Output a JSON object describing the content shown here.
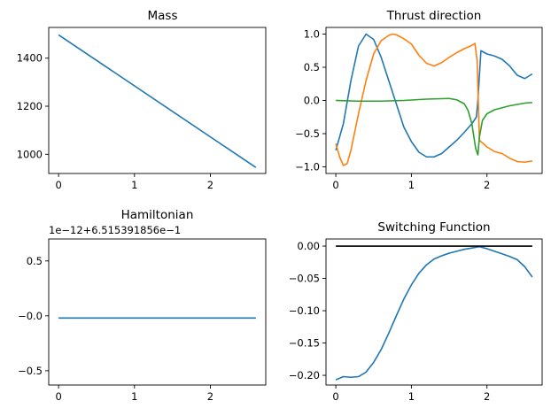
{
  "figure": {
    "background": "#ffffff"
  },
  "chart_data": [
    {
      "id": "mass",
      "type": "line",
      "title": "Mass",
      "xlabel": "",
      "ylabel": "",
      "xlim": [
        -0.13,
        2.73
      ],
      "ylim": [
        920,
        1528
      ],
      "xticks": [
        0,
        1,
        2
      ],
      "xtick_labels": [
        "0",
        "1",
        "2"
      ],
      "yticks": [
        1000,
        1200,
        1400
      ],
      "ytick_labels": [
        "1000",
        "1200",
        "1400"
      ],
      "grid": false,
      "series": [
        {
          "color": "#1f77b4",
          "x": [
            0,
            2.6
          ],
          "y": [
            1497,
            945
          ]
        }
      ]
    },
    {
      "id": "thrust",
      "type": "line",
      "title": "Thrust direction",
      "xlabel": "",
      "ylabel": "",
      "xlim": [
        -0.13,
        2.73
      ],
      "ylim": [
        -1.1,
        1.1
      ],
      "xticks": [
        0,
        1,
        2
      ],
      "xtick_labels": [
        "0",
        "1",
        "2"
      ],
      "yticks": [
        -1.0,
        -0.5,
        0.0,
        0.5,
        1.0
      ],
      "ytick_labels": [
        "−1.0",
        "−0.5",
        "0.0",
        "0.5",
        "1.0"
      ],
      "grid": false,
      "series": [
        {
          "color": "#1f77b4",
          "x": [
            0,
            0.1,
            0.2,
            0.3,
            0.4,
            0.5,
            0.6,
            0.7,
            0.8,
            0.9,
            1.0,
            1.1,
            1.2,
            1.3,
            1.4,
            1.5,
            1.6,
            1.7,
            1.8,
            1.86,
            1.88,
            1.92,
            2.0,
            2.1,
            2.2,
            2.3,
            2.4,
            2.5,
            2.6
          ],
          "y": [
            -0.75,
            -0.35,
            0.3,
            0.82,
            1.0,
            0.92,
            0.65,
            0.3,
            -0.05,
            -0.4,
            -0.62,
            -0.78,
            -0.85,
            -0.85,
            -0.8,
            -0.7,
            -0.6,
            -0.48,
            -0.35,
            -0.25,
            0.0,
            0.75,
            0.7,
            0.67,
            0.62,
            0.52,
            0.38,
            0.33,
            0.4
          ]
        },
        {
          "color": "#ff7f0e",
          "x": [
            0,
            0.05,
            0.1,
            0.15,
            0.2,
            0.3,
            0.4,
            0.5,
            0.6,
            0.7,
            0.75,
            0.8,
            0.9,
            1.0,
            1.1,
            1.2,
            1.3,
            1.4,
            1.5,
            1.6,
            1.7,
            1.8,
            1.84,
            1.87,
            1.9,
            1.92,
            2.0,
            2.1,
            2.2,
            2.3,
            2.4,
            2.5,
            2.6
          ],
          "y": [
            -0.65,
            -0.85,
            -0.98,
            -0.95,
            -0.75,
            -0.2,
            0.3,
            0.7,
            0.9,
            0.98,
            1.0,
            0.99,
            0.93,
            0.85,
            0.68,
            0.56,
            0.52,
            0.57,
            0.65,
            0.72,
            0.78,
            0.83,
            0.86,
            0.6,
            -0.6,
            -0.62,
            -0.7,
            -0.77,
            -0.8,
            -0.87,
            -0.92,
            -0.93,
            -0.91
          ]
        },
        {
          "color": "#2ca02c",
          "x": [
            0,
            0.3,
            0.6,
            0.9,
            1.2,
            1.5,
            1.6,
            1.7,
            1.75,
            1.8,
            1.85,
            1.88,
            1.9,
            1.94,
            2.0,
            2.1,
            2.2,
            2.3,
            2.4,
            2.5,
            2.6
          ],
          "y": [
            0.0,
            -0.01,
            -0.01,
            0.0,
            0.02,
            0.03,
            0.01,
            -0.05,
            -0.15,
            -0.35,
            -0.72,
            -0.82,
            -0.55,
            -0.3,
            -0.2,
            -0.14,
            -0.11,
            -0.08,
            -0.06,
            -0.04,
            -0.03
          ]
        }
      ]
    },
    {
      "id": "hamiltonian",
      "type": "line",
      "title": "Hamiltonian",
      "offset_text": "1e−12+6.515391856e−1",
      "xlabel": "",
      "ylabel": "",
      "xlim": [
        -0.13,
        2.73
      ],
      "ylim": [
        -0.63,
        0.7
      ],
      "xticks": [
        0,
        1,
        2
      ],
      "xtick_labels": [
        "0",
        "1",
        "2"
      ],
      "yticks": [
        -0.5,
        0.0,
        0.5
      ],
      "ytick_labels": [
        "−0.5",
        "−0.0",
        "0.5"
      ],
      "grid": false,
      "series": [
        {
          "color": "#1f77b4",
          "x": [
            0,
            2.6
          ],
          "y": [
            -0.02,
            -0.02
          ]
        }
      ]
    },
    {
      "id": "switching",
      "type": "line",
      "title": "Switching Function",
      "xlabel": "",
      "ylabel": "",
      "xlim": [
        -0.13,
        2.73
      ],
      "ylim": [
        -0.215,
        0.011
      ],
      "xticks": [
        0,
        1,
        2
      ],
      "xtick_labels": [
        "0",
        "1",
        "2"
      ],
      "yticks": [
        -0.2,
        -0.15,
        -0.1,
        -0.05,
        0.0
      ],
      "ytick_labels": [
        "−0.20",
        "−0.15",
        "−0.10",
        "−0.05",
        "0.00"
      ],
      "grid": false,
      "series": [
        {
          "color": "#1f77b4",
          "x": [
            0,
            0.1,
            0.2,
            0.3,
            0.4,
            0.5,
            0.6,
            0.7,
            0.8,
            0.9,
            1.0,
            1.1,
            1.2,
            1.3,
            1.4,
            1.5,
            1.6,
            1.7,
            1.8,
            1.9,
            2.0,
            2.1,
            2.2,
            2.3,
            2.4,
            2.5,
            2.6
          ],
          "y": [
            -0.207,
            -0.202,
            -0.203,
            -0.202,
            -0.195,
            -0.18,
            -0.16,
            -0.135,
            -0.108,
            -0.082,
            -0.06,
            -0.042,
            -0.029,
            -0.02,
            -0.015,
            -0.011,
            -0.008,
            -0.005,
            -0.003,
            -0.001,
            -0.004,
            -0.008,
            -0.012,
            -0.016,
            -0.021,
            -0.032,
            -0.048
          ]
        },
        {
          "color": "#000000",
          "x": [
            0,
            2.6
          ],
          "y": [
            0.0,
            0.0
          ]
        }
      ]
    }
  ]
}
